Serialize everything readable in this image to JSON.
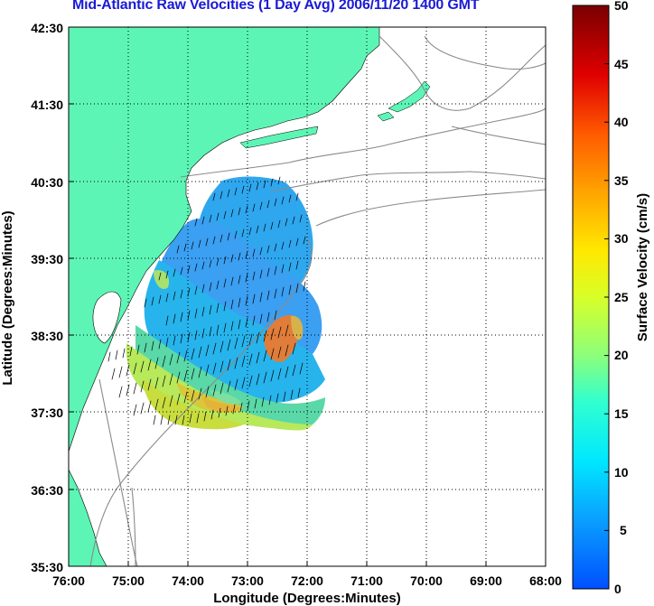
{
  "title": "Mid-Atlantic Raw Velocities (1 Day Avg) 2006/11/20 1400 GMT",
  "axes": {
    "xlabel": "Longitude (Degrees:Minutes)",
    "ylabel": "Latitude (Degrees:Minutes)",
    "x_ticks": [
      "76:00",
      "75:00",
      "74:00",
      "73:00",
      "72:00",
      "71:00",
      "70:00",
      "69:00",
      "68:00"
    ],
    "y_ticks": [
      "42:30",
      "41:30",
      "40:30",
      "39:30",
      "38:30",
      "37:30",
      "36:30",
      "35:30"
    ],
    "xlim": [
      -76.0,
      -68.0
    ],
    "ylim": [
      35.5,
      42.5
    ],
    "grid": "dotted"
  },
  "colorbar": {
    "label": "Surface Velocity (cm/s)",
    "range": [
      0,
      50
    ],
    "ticks": [
      "50",
      "45",
      "40",
      "35",
      "30",
      "25",
      "20",
      "15",
      "10",
      "5",
      "0"
    ],
    "colormap": "jet"
  },
  "colors": {
    "land": "#5cf5b5",
    "title": "#1a1ad6",
    "bathymetry": "#8a8a8a",
    "vectors": "#000000"
  }
}
